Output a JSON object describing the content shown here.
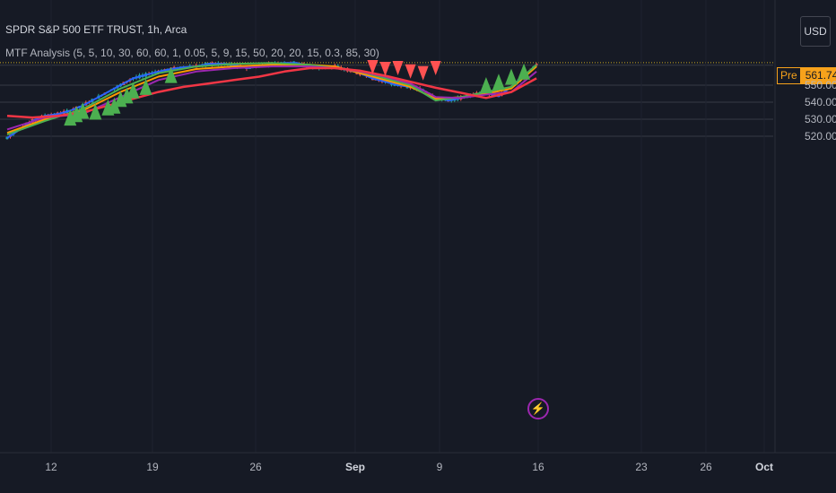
{
  "legend": {
    "title": "SPDR S&P 500 ETF TRUST, 1h, Arca",
    "indicator": "MTF Analysis (5, 5, 10, 30, 60, 60, 1, 0.05, 5, 9, 15, 50, 20, 20, 15, 0.3, 85, 30)"
  },
  "currency_button": {
    "label": "USD"
  },
  "premarket": {
    "tag": "Pre",
    "price": "561.74"
  },
  "event_icon": "lightning-icon",
  "colors": {
    "background": "#161a25",
    "grid": "#363a45",
    "up_candle": "#26a69a",
    "down_candle": "#ef5350",
    "buy_signal": "#4caf50",
    "sell_signal": "#ff5252",
    "ma_fast": "#2962ff",
    "ma_orange": "#ff9800",
    "ma_green": "#4caf50",
    "ma_purple": "#9c27b0",
    "ma_slow": "#f23645",
    "premarket": "#f7a21b"
  },
  "chart_data": {
    "type": "line",
    "title": "SPDR S&P 500 ETF TRUST, 1h, Arca",
    "y_ticks": [
      "550.00",
      "540.00",
      "530.00",
      "520.00"
    ],
    "x_ticks": [
      "12",
      "19",
      "26",
      "Sep",
      "9",
      "16",
      "23",
      "26",
      "Oct"
    ],
    "ylim": [
      516,
      567
    ],
    "xlim": [
      0,
      60
    ],
    "grid": true,
    "series": [
      {
        "key": "price",
        "color": "#2962ff",
        "x": [
          0,
          1,
          2,
          3,
          4,
          5,
          6,
          7,
          8,
          9,
          10,
          11,
          12,
          13,
          14,
          15,
          16,
          17,
          18,
          19,
          20,
          21,
          22,
          23,
          24,
          25,
          26,
          27,
          28,
          29,
          30,
          31,
          32,
          33,
          34,
          35,
          36,
          37,
          38,
          39,
          40,
          41,
          42
        ],
        "y": [
          519,
          524,
          529,
          532,
          533,
          535,
          538,
          542,
          546,
          550,
          554,
          556,
          558,
          559.5,
          560.5,
          561,
          562.5,
          562.5,
          562,
          560,
          561,
          562.5,
          563,
          563,
          561,
          560,
          561,
          559,
          557,
          554,
          552,
          550,
          549,
          547,
          543,
          541,
          542.5,
          544.5,
          545.5,
          543.5,
          549,
          555,
          562
        ]
      },
      {
        "key": "ma-orange",
        "color": "#ff9800",
        "x": [
          0,
          3,
          6,
          9,
          12,
          15,
          18,
          21,
          24,
          26,
          28,
          30,
          32,
          34,
          36,
          38,
          40,
          42
        ],
        "y": [
          522,
          530,
          535,
          546,
          555,
          559.5,
          561,
          562,
          562,
          561,
          557,
          553,
          549,
          542,
          543,
          545,
          548,
          561
        ]
      },
      {
        "key": "ma-green",
        "color": "#4caf50",
        "x": [
          0,
          3,
          6,
          9,
          12,
          15,
          18,
          21,
          24,
          26,
          28,
          30,
          32,
          34,
          36,
          38,
          40,
          42
        ],
        "y": [
          521,
          529,
          536,
          548,
          557,
          561,
          562.5,
          563,
          562,
          560,
          558,
          554,
          550,
          541,
          543,
          546,
          549,
          562
        ]
      },
      {
        "key": "ma-purple",
        "color": "#9c27b0",
        "x": [
          0,
          3,
          6,
          9,
          12,
          15,
          18,
          21,
          24,
          26,
          28,
          30,
          32,
          34,
          36,
          38,
          40,
          42
        ],
        "y": [
          524,
          531,
          533,
          543,
          553,
          558,
          560,
          561,
          561,
          560,
          558,
          555,
          551,
          543,
          542.5,
          544.5,
          546,
          558
        ]
      },
      {
        "key": "ma-slow",
        "color": "#f23645",
        "x": [
          0,
          2,
          4,
          6,
          8,
          10,
          12,
          14,
          16,
          18,
          20,
          22,
          24,
          26,
          28,
          30,
          32,
          34,
          36,
          38,
          40,
          42
        ],
        "y": [
          532,
          531,
          532,
          534,
          538,
          542,
          546,
          549,
          551,
          553,
          555,
          558,
          560,
          560,
          558.5,
          555.5,
          552,
          548.5,
          545.5,
          542.5,
          546,
          554
        ]
      }
    ],
    "buy_signals": [
      {
        "x": 5,
        "y": 531
      },
      {
        "x": 5.5,
        "y": 533
      },
      {
        "x": 6,
        "y": 535
      },
      {
        "x": 7,
        "y": 534.5
      },
      {
        "x": 8,
        "y": 537
      },
      {
        "x": 8.5,
        "y": 538
      },
      {
        "x": 9,
        "y": 542
      },
      {
        "x": 9.5,
        "y": 544
      },
      {
        "x": 10,
        "y": 547
      },
      {
        "x": 11,
        "y": 549
      },
      {
        "x": 13,
        "y": 556
      },
      {
        "x": 38,
        "y": 550
      },
      {
        "x": 39,
        "y": 552
      },
      {
        "x": 40,
        "y": 555
      },
      {
        "x": 41,
        "y": 558
      }
    ],
    "sell_signals": [
      {
        "x": 29,
        "y": 560.5
      },
      {
        "x": 30,
        "y": 559.5
      },
      {
        "x": 31,
        "y": 560
      },
      {
        "x": 32,
        "y": 558
      },
      {
        "x": 33,
        "y": 557
      },
      {
        "x": 34,
        "y": 560
      }
    ],
    "premarket_price": 561.74,
    "last_price_dotted": 563.2
  }
}
